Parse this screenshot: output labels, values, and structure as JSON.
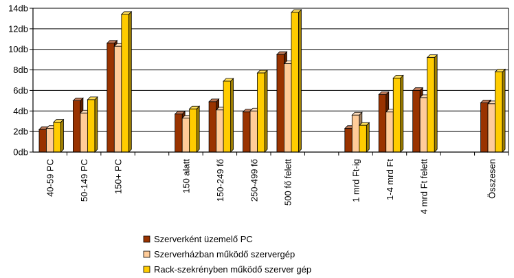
{
  "chart_data": {
    "type": "bar",
    "title": "",
    "xlabel": "",
    "ylabel": "",
    "ylim": [
      0,
      14
    ],
    "y_ticks": [
      "0db",
      "2db",
      "4db",
      "6db",
      "8db",
      "10db",
      "12db",
      "14db"
    ],
    "grid": true,
    "legend_position": "bottom",
    "categories": [
      "40-59 PC",
      "50-149 PC",
      "150+ PC",
      "",
      "150 alatt",
      "150-249 fő",
      "250-499 fő",
      "500 fő felett",
      "",
      "1 mrd Ft-ig",
      "1-4 mrd Ft",
      "4 mrd Ft felett",
      "",
      "Összesen"
    ],
    "series": [
      {
        "name": "Szerverként üzemelő PC",
        "color": "#993300",
        "values": [
          2.2,
          5.0,
          10.6,
          null,
          3.7,
          4.9,
          3.9,
          9.5,
          null,
          2.3,
          5.6,
          6.0,
          null,
          4.8
        ]
      },
      {
        "name": "Szerverházban működő szervergép",
        "color": "#FFCC99",
        "values": [
          2.3,
          3.8,
          10.3,
          null,
          3.3,
          4.1,
          4.0,
          8.6,
          null,
          3.6,
          3.9,
          5.3,
          null,
          4.7
        ]
      },
      {
        "name": "Rack-szekrényben működő szerver gép",
        "color": "#FFCC00",
        "values": [
          2.9,
          5.1,
          13.4,
          null,
          4.2,
          6.9,
          7.7,
          13.6,
          null,
          2.6,
          7.2,
          9.2,
          null,
          7.8
        ]
      }
    ]
  }
}
